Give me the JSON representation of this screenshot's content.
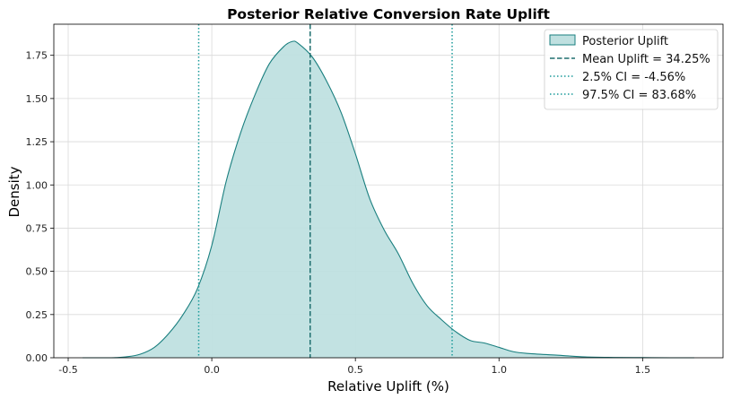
{
  "chart_data": {
    "type": "area",
    "title": "Posterior Relative Conversion Rate Uplift",
    "xlabel": "Relative Uplift (%)",
    "ylabel": "Density",
    "xlim": [
      -0.55,
      1.78
    ],
    "ylim": [
      0,
      1.93
    ],
    "grid": true,
    "legend_position": "top-right",
    "x_ticks": [
      -0.5,
      0.0,
      0.5,
      1.0,
      1.5
    ],
    "x_tick_labels": [
      "-0.5",
      "0.0",
      "0.5",
      "1.0",
      "1.5"
    ],
    "y_ticks": [
      0.0,
      0.25,
      0.5,
      0.75,
      1.0,
      1.25,
      1.5,
      1.75
    ],
    "y_tick_labels": [
      "0.00",
      "0.25",
      "0.50",
      "0.75",
      "1.00",
      "1.25",
      "1.50",
      "1.75"
    ],
    "series": [
      {
        "name": "Posterior Uplift",
        "x": [
          -0.45,
          -0.35,
          -0.3,
          -0.25,
          -0.2,
          -0.15,
          -0.1,
          -0.05,
          0.0,
          0.05,
          0.1,
          0.15,
          0.2,
          0.25,
          0.28,
          0.3,
          0.35,
          0.4,
          0.45,
          0.5,
          0.55,
          0.6,
          0.65,
          0.7,
          0.75,
          0.8,
          0.85,
          0.9,
          0.95,
          1.0,
          1.05,
          1.1,
          1.2,
          1.3,
          1.4,
          1.5,
          1.6,
          1.68
        ],
        "y": [
          0.0,
          0.0,
          0.005,
          0.02,
          0.06,
          0.14,
          0.25,
          0.4,
          0.65,
          1.02,
          1.3,
          1.52,
          1.7,
          1.8,
          1.83,
          1.82,
          1.74,
          1.6,
          1.42,
          1.18,
          0.92,
          0.74,
          0.6,
          0.43,
          0.3,
          0.22,
          0.15,
          0.1,
          0.085,
          0.06,
          0.035,
          0.025,
          0.015,
          0.005,
          0.002,
          0.001,
          0.0,
          0.0
        ]
      }
    ],
    "reference_lines": [
      {
        "name": "Mean Uplift = 34.25%",
        "x": 0.3425,
        "style": "dashed",
        "color": "#1f6f6f"
      },
      {
        "name": "2.5% CI = -4.56%",
        "x": -0.0456,
        "style": "dotted",
        "color": "#1a9a9a"
      },
      {
        "name": "97.5% CI = 83.68%",
        "x": 0.8368,
        "style": "dotted",
        "color": "#1a9a9a"
      }
    ],
    "colors": {
      "fill": "#bfe0e0",
      "stroke": "#1a7f7f",
      "mean_line": "#1f6f6f",
      "ci_line": "#1a9a9a",
      "grid": "#d9d9d9"
    }
  }
}
